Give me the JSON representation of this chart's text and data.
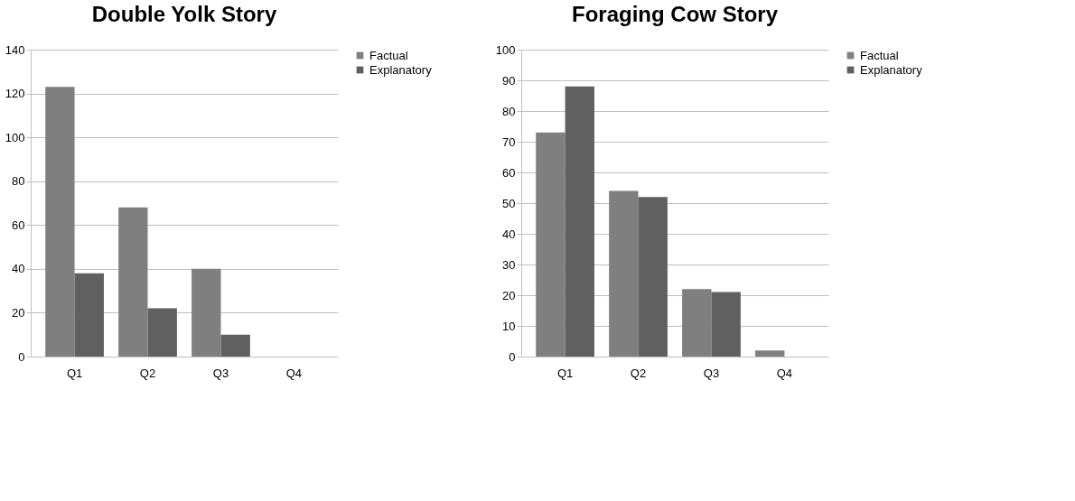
{
  "chart_data": [
    {
      "type": "bar",
      "title": "Double Yolk Story",
      "categories": [
        "Q1",
        "Q2",
        "Q3",
        "Q4"
      ],
      "series": [
        {
          "name": "Factual",
          "color": "#7f7f7f",
          "values": [
            123,
            68,
            40,
            0
          ]
        },
        {
          "name": "Explanatory",
          "color": "#606060",
          "values": [
            38,
            22,
            10,
            0
          ]
        }
      ],
      "ylim": [
        0,
        140
      ],
      "yticks": [
        0,
        20,
        40,
        60,
        80,
        100,
        120,
        140
      ],
      "grid": "y",
      "legend": "right"
    },
    {
      "type": "bar",
      "title": "Foraging Cow Story",
      "categories": [
        "Q1",
        "Q2",
        "Q3",
        "Q4"
      ],
      "series": [
        {
          "name": "Factual",
          "color": "#7f7f7f",
          "values": [
            73,
            54,
            22,
            2
          ]
        },
        {
          "name": "Explanatory",
          "color": "#606060",
          "values": [
            88,
            52,
            21,
            0
          ]
        }
      ],
      "ylim": [
        0,
        100
      ],
      "yticks": [
        0,
        10,
        20,
        30,
        40,
        50,
        60,
        70,
        80,
        90,
        100
      ],
      "grid": "y",
      "legend": "right"
    }
  ]
}
